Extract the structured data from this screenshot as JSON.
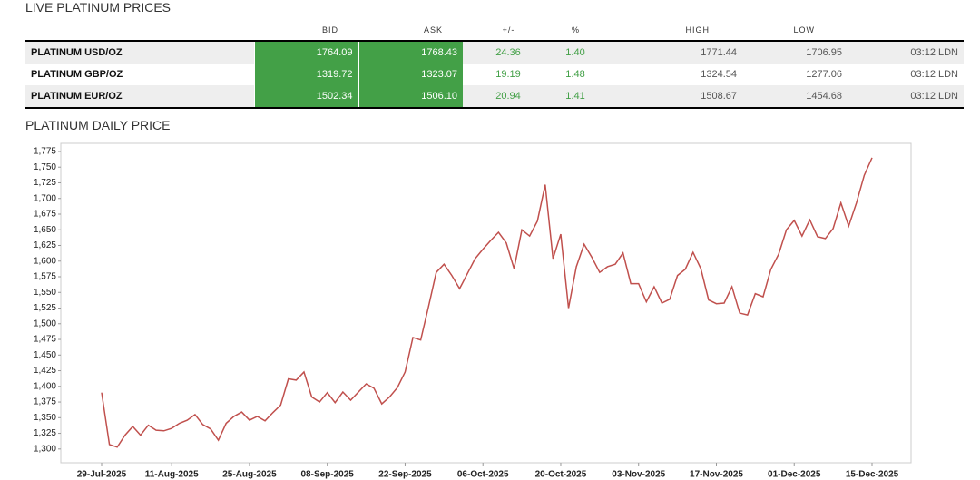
{
  "header": {
    "title": "LIVE PLATINUM PRICES"
  },
  "table": {
    "columns": [
      "BID",
      "ASK",
      "+/-",
      "%",
      "HIGH",
      "LOW"
    ],
    "rows": [
      [
        "PLATINUM USD/OZ",
        "1764.09",
        "1768.43",
        "24.36",
        "1.40",
        "1771.44",
        "1706.95",
        "03:12 LDN"
      ],
      [
        "PLATINUM GBP/OZ",
        "1319.72",
        "1323.07",
        "19.19",
        "1.48",
        "1324.54",
        "1277.06",
        "03:12 LDN"
      ],
      [
        "PLATINUM EUR/OZ",
        "1502.34",
        "1506.10",
        "20.94",
        "1.41",
        "1508.67",
        "1454.68",
        "03:12 LDN"
      ]
    ]
  },
  "chart_data": {
    "type": "line",
    "title": "PLATINUM DAILY PRICE",
    "color": "#c0504d",
    "grid": false,
    "x": [
      "29-Jul-2025",
      "30-Jul-2025",
      "31-Jul-2025",
      "01-Aug-2025",
      "04-Aug-2025",
      "05-Aug-2025",
      "06-Aug-2025",
      "07-Aug-2025",
      "08-Aug-2025",
      "11-Aug-2025",
      "12-Aug-2025",
      "13-Aug-2025",
      "14-Aug-2025",
      "15-Aug-2025",
      "18-Aug-2025",
      "19-Aug-2025",
      "20-Aug-2025",
      "21-Aug-2025",
      "22-Aug-2025",
      "25-Aug-2025",
      "26-Aug-2025",
      "27-Aug-2025",
      "28-Aug-2025",
      "29-Aug-2025",
      "01-Sep-2025",
      "02-Sep-2025",
      "03-Sep-2025",
      "04-Sep-2025",
      "05-Sep-2025",
      "08-Sep-2025",
      "09-Sep-2025",
      "10-Sep-2025",
      "11-Sep-2025",
      "12-Sep-2025",
      "15-Sep-2025",
      "16-Sep-2025",
      "17-Sep-2025",
      "18-Sep-2025",
      "19-Sep-2025",
      "22-Sep-2025",
      "23-Sep-2025",
      "24-Sep-2025",
      "25-Sep-2025",
      "26-Sep-2025",
      "29-Sep-2025",
      "30-Sep-2025",
      "01-Oct-2025",
      "02-Oct-2025",
      "03-Oct-2025",
      "06-Oct-2025",
      "07-Oct-2025",
      "08-Oct-2025",
      "09-Oct-2025",
      "10-Oct-2025",
      "13-Oct-2025",
      "14-Oct-2025",
      "15-Oct-2025",
      "16-Oct-2025",
      "17-Oct-2025",
      "20-Oct-2025",
      "21-Oct-2025",
      "22-Oct-2025",
      "23-Oct-2025",
      "24-Oct-2025",
      "27-Oct-2025",
      "28-Oct-2025",
      "29-Oct-2025",
      "30-Oct-2025",
      "31-Oct-2025",
      "03-Nov-2025",
      "04-Nov-2025",
      "05-Nov-2025",
      "06-Nov-2025",
      "07-Nov-2025",
      "10-Nov-2025",
      "11-Nov-2025",
      "12-Nov-2025",
      "13-Nov-2025",
      "14-Nov-2025",
      "17-Nov-2025",
      "18-Nov-2025",
      "19-Nov-2025",
      "20-Nov-2025",
      "21-Nov-2025",
      "24-Nov-2025",
      "25-Nov-2025",
      "26-Nov-2025",
      "27-Nov-2025",
      "28-Nov-2025",
      "01-Dec-2025",
      "02-Dec-2025",
      "03-Dec-2025",
      "04-Dec-2025",
      "05-Dec-2025",
      "08-Dec-2025",
      "09-Dec-2025",
      "10-Dec-2025",
      "11-Dec-2025",
      "12-Dec-2025",
      "15-Dec-2025"
    ],
    "values": [
      1390,
      1307,
      1303,
      1322,
      1336,
      1322,
      1338,
      1330,
      1329,
      1333,
      1341,
      1346,
      1355,
      1339,
      1332,
      1314,
      1341,
      1352,
      1359,
      1346,
      1352,
      1345,
      1358,
      1370,
      1412,
      1410,
      1423,
      1383,
      1375,
      1390,
      1374,
      1391,
      1378,
      1391,
      1404,
      1397,
      1372,
      1383,
      1398,
      1423,
      1478,
      1474,
      1527,
      1582,
      1595,
      1577,
      1556,
      1580,
      1604,
      1619,
      1633,
      1646,
      1629,
      1588,
      1650,
      1640,
      1664,
      1722,
      1604,
      1643,
      1525,
      1591,
      1627,
      1606,
      1582,
      1591,
      1595,
      1613,
      1564,
      1564,
      1535,
      1559,
      1533,
      1539,
      1577,
      1587,
      1614,
      1588,
      1538,
      1532,
      1533,
      1559,
      1517,
      1514,
      1548,
      1543,
      1587,
      1611,
      1650,
      1665,
      1640,
      1666,
      1639,
      1636,
      1652,
      1693,
      1656,
      1693,
      1737,
      1765
    ],
    "xticks": [
      "29-Jul-2025",
      "11-Aug-2025",
      "25-Aug-2025",
      "08-Sep-2025",
      "22-Sep-2025",
      "06-Oct-2025",
      "20-Oct-2025",
      "03-Nov-2025",
      "17-Nov-2025",
      "01-Dec-2025",
      "15-Dec-2025"
    ],
    "ylim": [
      1278,
      1788
    ],
    "yticks": [
      {
        "value": 1300,
        "label": "1,300"
      },
      {
        "value": 1325,
        "label": "1,325"
      },
      {
        "value": 1350,
        "label": "1,350"
      },
      {
        "value": 1375,
        "label": "1,375"
      },
      {
        "value": 1400,
        "label": "1,400"
      },
      {
        "value": 1425,
        "label": "1,425"
      },
      {
        "value": 1450,
        "label": "1,450"
      },
      {
        "value": 1475,
        "label": "1,475"
      },
      {
        "value": 1500,
        "label": "1,500"
      },
      {
        "value": 1525,
        "label": "1,525"
      },
      {
        "value": 1550,
        "label": "1,550"
      },
      {
        "value": 1575,
        "label": "1,575"
      },
      {
        "value": 1600,
        "label": "1,600"
      },
      {
        "value": 1625,
        "label": "1,625"
      },
      {
        "value": 1650,
        "label": "1,650"
      },
      {
        "value": 1675,
        "label": "1,675"
      },
      {
        "value": 1700,
        "label": "1,700"
      },
      {
        "value": 1725,
        "label": "1,725"
      },
      {
        "value": 1750,
        "label": "1,750"
      },
      {
        "value": 1775,
        "label": "1,775"
      }
    ]
  }
}
